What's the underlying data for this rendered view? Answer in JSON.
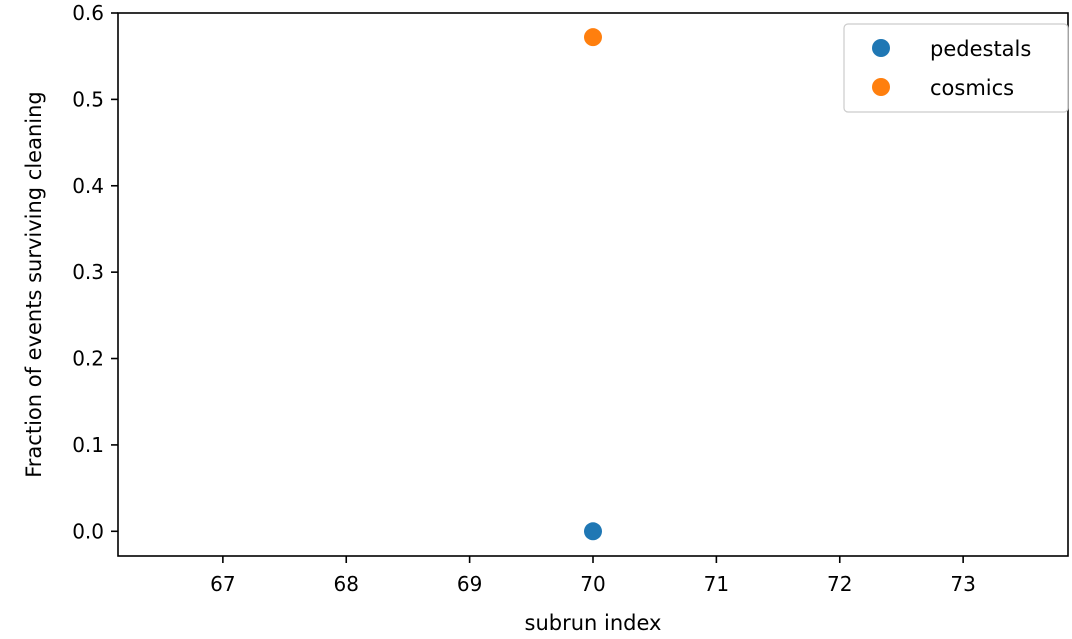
{
  "chart_data": {
    "type": "scatter",
    "title": "",
    "xlabel": "subrun index",
    "ylabel": "Fraction of events surviving cleaning",
    "xlim": [
      66.15,
      73.85
    ],
    "ylim": [
      -0.0286,
      0.6
    ],
    "xticks": [
      67,
      68,
      69,
      70,
      71,
      72,
      73
    ],
    "yticks": [
      0.0,
      0.1,
      0.2,
      0.3,
      0.4,
      0.5,
      0.6
    ],
    "xtick_labels": [
      "67",
      "68",
      "69",
      "70",
      "71",
      "72",
      "73"
    ],
    "ytick_labels": [
      "0.0",
      "0.1",
      "0.2",
      "0.3",
      "0.4",
      "0.5",
      "0.6"
    ],
    "grid": false,
    "legend_position": "top-right",
    "series": [
      {
        "name": "pedestals",
        "color": "#1f77b4",
        "x": [
          70
        ],
        "y": [
          0.0
        ]
      },
      {
        "name": "cosmics",
        "color": "#ff7f0e",
        "x": [
          70
        ],
        "y": [
          0.572
        ]
      }
    ]
  }
}
